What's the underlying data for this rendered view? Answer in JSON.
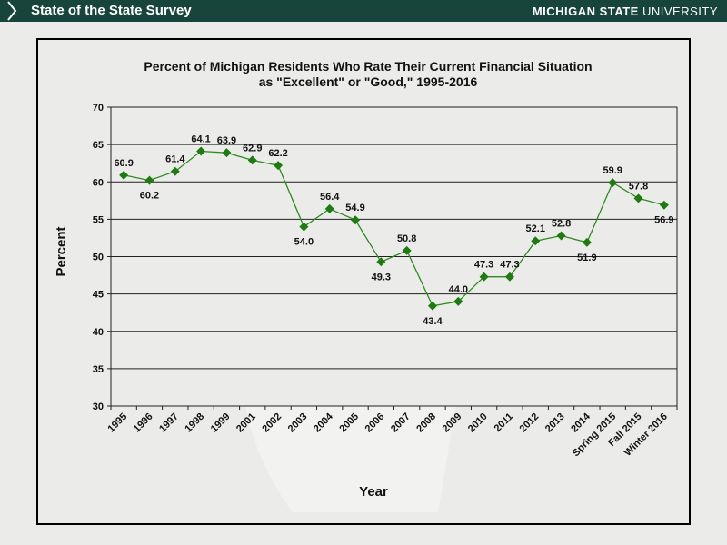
{
  "header": {
    "title": "State of the State Survey",
    "brand_bold": "MICHIGAN STATE",
    "brand_regular": "UNIVERSITY"
  },
  "colors": {
    "header_bg": "#18453b",
    "background": "#ebebea",
    "series": "#2e8b1f",
    "marker": "#1f7a12"
  },
  "chart_data": {
    "type": "line",
    "title": "Percent of Michigan Residents Who Rate Their Current Financial Situation",
    "subtitle": "as \"Excellent\" or \"Good,\" 1995-2016",
    "xlabel": "Year",
    "ylabel": "Percent",
    "ylim": [
      30,
      70
    ],
    "yticks": [
      30,
      35,
      40,
      45,
      50,
      55,
      60,
      65,
      70
    ],
    "grid": true,
    "legend": "none",
    "categories": [
      "1995",
      "1996",
      "1997",
      "1998",
      "1999",
      "2001",
      "2002",
      "2003",
      "2004",
      "2005",
      "2006",
      "2007",
      "2008",
      "2009",
      "2010",
      "2011",
      "2012",
      "2013",
      "2014",
      "Spring 2015",
      "Fall 2015",
      "Winter 2016"
    ],
    "values": [
      60.9,
      60.2,
      61.4,
      64.1,
      63.9,
      62.9,
      62.2,
      54.0,
      56.4,
      54.9,
      49.3,
      50.8,
      43.4,
      44.0,
      47.3,
      47.3,
      52.1,
      52.8,
      51.9,
      59.9,
      57.8,
      56.9
    ],
    "data_labels": [
      "60.9",
      "60.2",
      "61.4",
      "64.1",
      "63.9",
      "62.9",
      "62.2",
      "54.0",
      "56.4",
      "54.9",
      "49.3",
      "50.8",
      "43.4",
      "44.0",
      "47.3",
      "47.3",
      "52.1",
      "52.8",
      "51.9",
      "59.9",
      "57.8",
      "56.9"
    ]
  }
}
